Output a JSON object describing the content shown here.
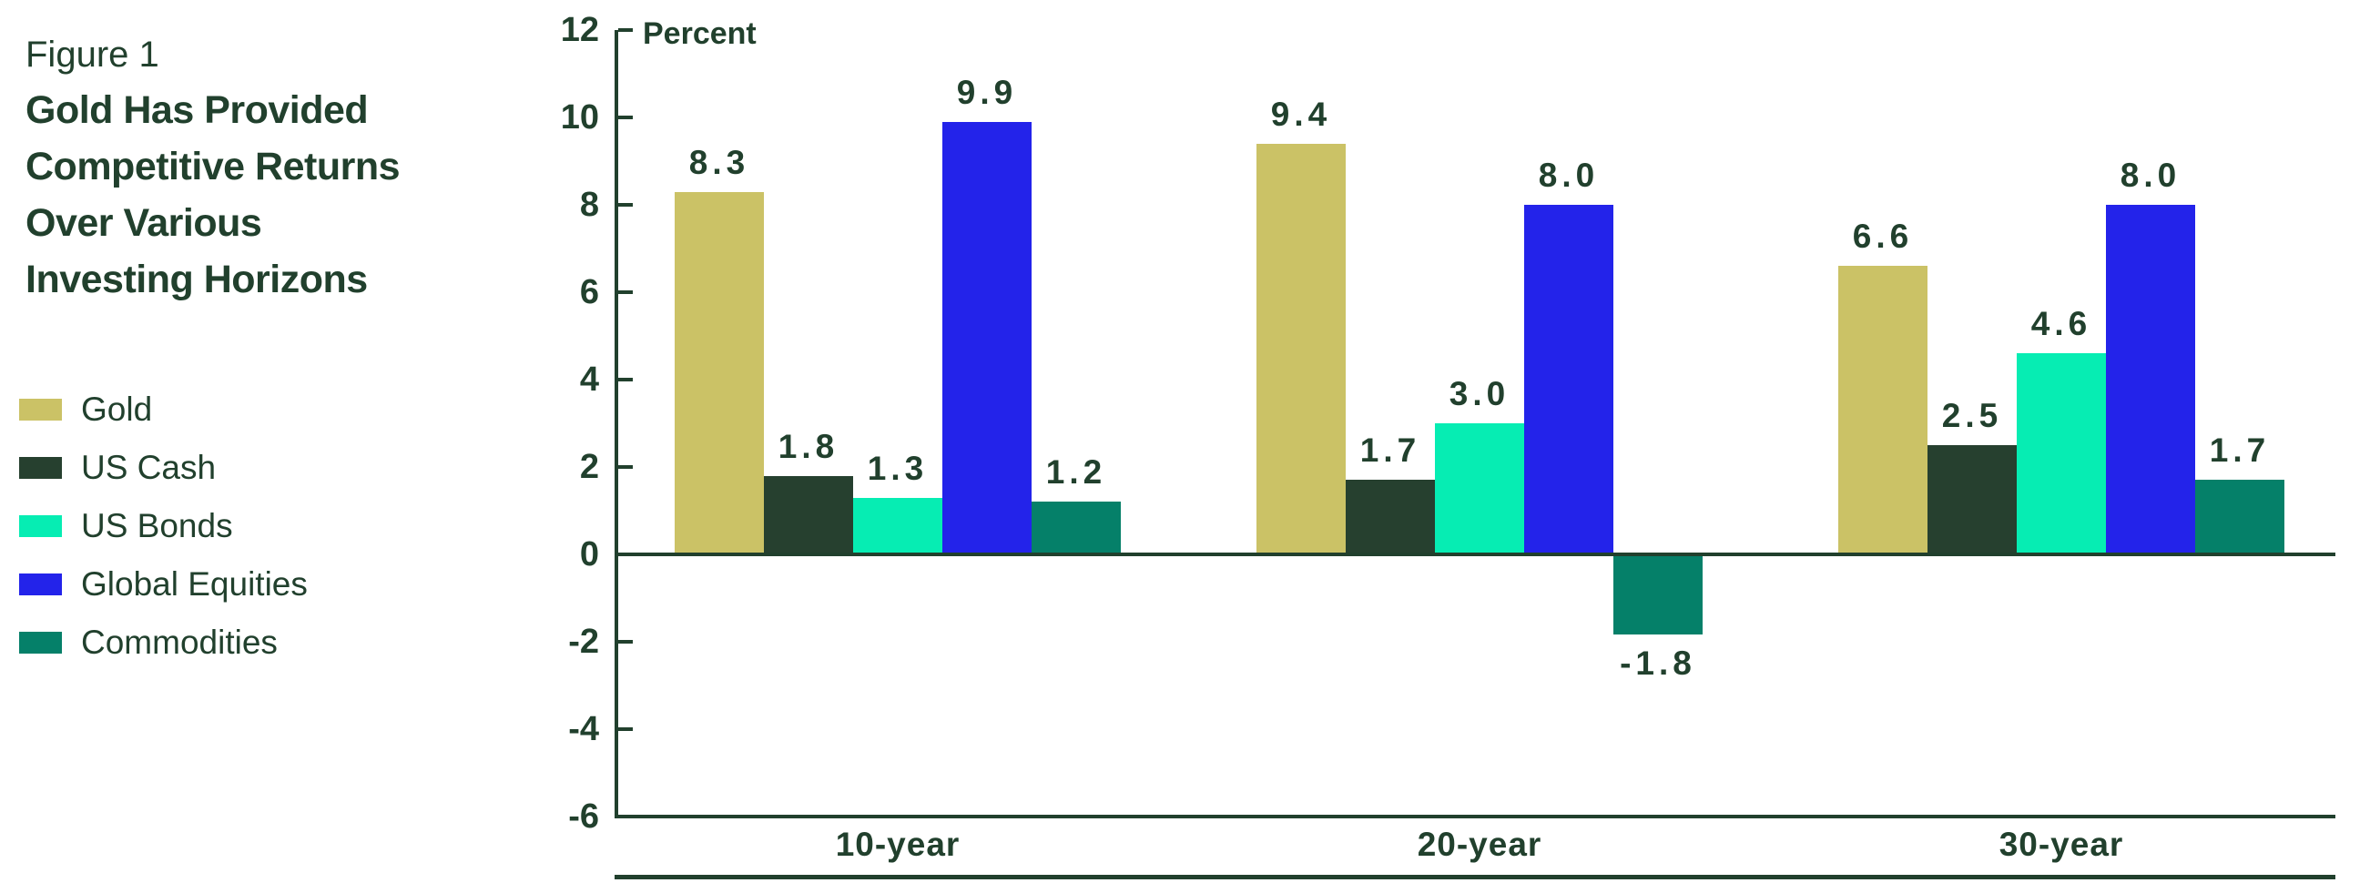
{
  "figure": {
    "label": "Figure 1",
    "title_lines": [
      "Gold Has Provided",
      "Competitive Returns",
      "Over Various",
      "Investing Horizons"
    ]
  },
  "legend": {
    "items": [
      {
        "label": "Gold",
        "color": "#cbc266"
      },
      {
        "label": "US Cash",
        "color": "#26402f"
      },
      {
        "label": "US Bonds",
        "color": "#06edb3"
      },
      {
        "label": "Global Equities",
        "color": "#2323ea"
      },
      {
        "label": "Commodities",
        "color": "#058069"
      }
    ]
  },
  "chart_data": {
    "type": "bar",
    "title": "",
    "axis_unit_label": "Percent",
    "categories": [
      "10-year",
      "20-year",
      "30-year"
    ],
    "series": [
      {
        "name": "Gold",
        "color": "#cbc266",
        "values": [
          8.3,
          9.4,
          6.6
        ]
      },
      {
        "name": "US Cash",
        "color": "#26402f",
        "values": [
          1.8,
          1.7,
          2.5
        ]
      },
      {
        "name": "US Bonds",
        "color": "#06edb3",
        "values": [
          1.3,
          3.0,
          4.6
        ]
      },
      {
        "name": "Global Equities",
        "color": "#2323ea",
        "values": [
          9.9,
          8.0,
          8.0
        ]
      },
      {
        "name": "Commodities",
        "color": "#058069",
        "values": [
          1.2,
          -1.8,
          1.7
        ]
      }
    ],
    "y_ticks": [
      12,
      10,
      8,
      6,
      4,
      2,
      0,
      -2,
      -4,
      -6
    ],
    "ylim": [
      -6,
      12
    ],
    "grid": false,
    "legend_position": "left",
    "value_label_format": "one_decimal"
  },
  "colors": {
    "text": "#21402d",
    "axis": "#21402d",
    "background": "#ffffff"
  }
}
